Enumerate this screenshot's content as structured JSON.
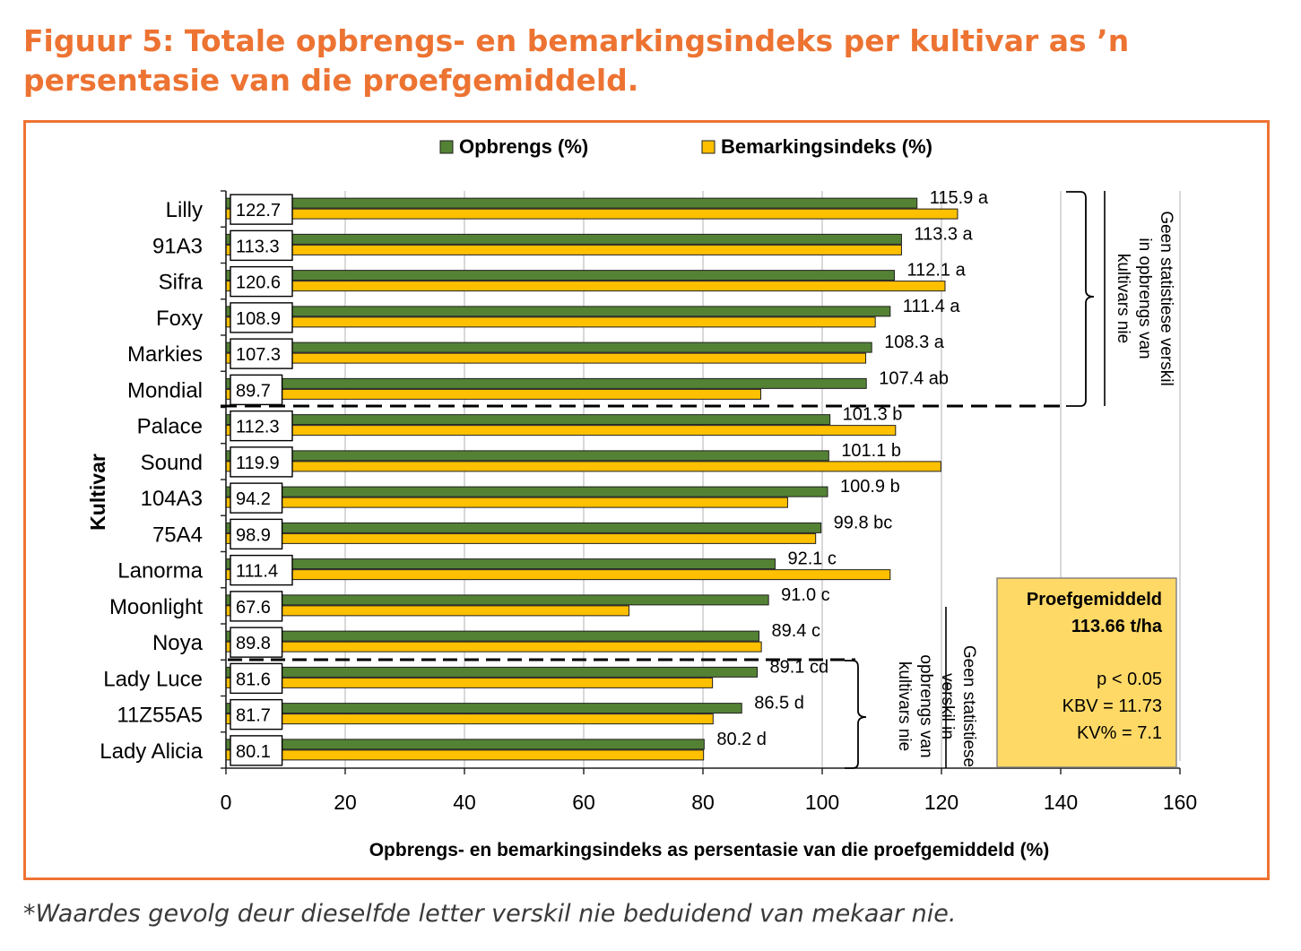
{
  "figure": {
    "title": "Figuur 5: Totale opbrengs- en bemarkingsindeks per kultivar as ’n persentasie van die proefgemiddeld.",
    "footnote": "*Waardes gevolg deur dieselfde letter verskil nie beduidend van mekaar nie."
  },
  "colors": {
    "accent": "#ED7332",
    "yield_bar": "#548235",
    "market_bar": "#FFC000",
    "mean_box": "#FFD966"
  },
  "annotations": {
    "group_top_note": [
      "Geen statistiese verskil",
      "in opbrengs van",
      "kultivars nie"
    ],
    "group_bottom_note": [
      "Geen statistiese",
      "verskil in",
      "opbrengs van",
      "kultivars nie"
    ]
  },
  "mean_box": {
    "heading": "Proefgemiddeld",
    "value": "113.66 t/ha",
    "p": "p < 0.05",
    "kbv": "KBV = 11.73",
    "kv": "KV% = 7.1"
  },
  "chart_data": {
    "type": "bar",
    "orientation": "horizontal",
    "title": "",
    "xlabel": "Opbrengs- en bemarkingsindeks as persentasie van die proefgemiddeld (%)",
    "ylabel": "Kultivar",
    "xlim": [
      0,
      160
    ],
    "xticks": [
      0,
      20,
      40,
      60,
      80,
      100,
      120,
      140,
      160
    ],
    "legend_position": "top",
    "categories": [
      "Lilly",
      "91A3",
      "Sifra",
      "Foxy",
      "Markies",
      "Mondial",
      "Palace",
      "Sound",
      "104A3",
      "75A4",
      "Lanorma",
      "Moonlight",
      "Noya",
      "Lady Luce",
      "11Z55A5",
      "Lady Alicia"
    ],
    "series": [
      {
        "name": "Opbrengs (%)",
        "values": [
          115.9,
          113.3,
          112.1,
          111.4,
          108.3,
          107.4,
          101.3,
          101.1,
          100.9,
          99.8,
          92.1,
          91.0,
          89.4,
          89.1,
          86.5,
          80.2
        ],
        "labels": [
          "115.9 a",
          "113.3 a",
          "112.1 a",
          "111.4 a",
          "108.3 a",
          "107.4 ab",
          "101.3 b",
          "101.1 b",
          "100.9 b",
          "99.8 bc",
          "92.1 c",
          "91.0 c",
          "89.4 c",
          "89.1 cd",
          "86.5 d",
          "80.2 d"
        ]
      },
      {
        "name": "Bemarkingsindeks (%)",
        "values": [
          122.7,
          113.3,
          120.6,
          108.9,
          107.3,
          89.7,
          112.3,
          119.9,
          94.2,
          98.9,
          111.4,
          67.6,
          89.8,
          81.6,
          81.7,
          80.1
        ],
        "labels": [
          "122.7",
          "113.3",
          "120.6",
          "108.9",
          "107.3",
          "89.7",
          "112.3",
          "119.9",
          "94.2",
          "98.9",
          "111.4",
          "67.6",
          "89.8",
          "81.6",
          "81.7",
          "80.1"
        ]
      }
    ]
  }
}
